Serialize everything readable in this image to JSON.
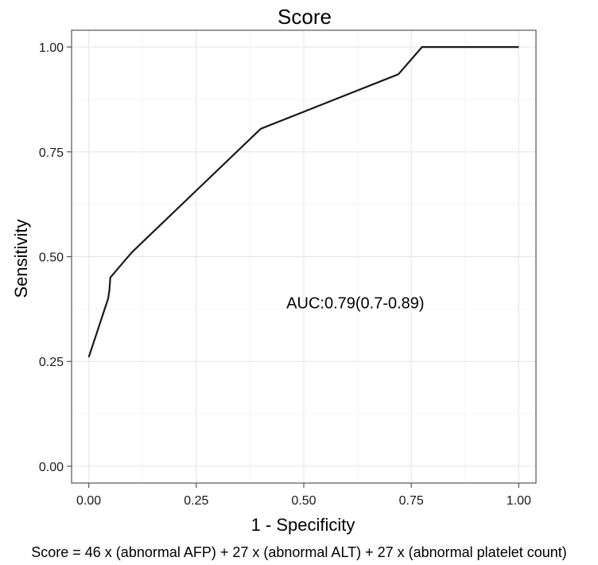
{
  "chart_data": {
    "type": "line",
    "title": "Score",
    "xlabel": "1 - Specificity",
    "ylabel": "Sensitivity",
    "xlim": [
      -0.04,
      1.04
    ],
    "ylim": [
      -0.04,
      1.04
    ],
    "x_ticks": [
      "0.00",
      "0.25",
      "0.50",
      "0.75",
      "1.00"
    ],
    "y_ticks": [
      "0.00",
      "0.25",
      "0.50",
      "0.75",
      "1.00"
    ],
    "x_tick_values": [
      0,
      0.25,
      0.5,
      0.75,
      1
    ],
    "y_tick_values": [
      0,
      0.25,
      0.5,
      0.75,
      1
    ],
    "grid": true,
    "series": [
      {
        "x": [
          0.0,
          0.045,
          0.048,
          0.05,
          0.1,
          0.4,
          0.72,
          0.775,
          1.0
        ],
        "y": [
          0.26,
          0.4,
          0.42,
          0.45,
          0.51,
          0.805,
          0.935,
          1.0,
          1.0
        ],
        "color": "#1a1a1a"
      }
    ],
    "annotations": [
      {
        "text": "AUC:0.79(0.7-0.89)",
        "x": 0.62,
        "y": 0.39
      }
    ]
  },
  "caption": "Score = 46 x (abnormal AFP) + 27 x (abnormal ALT) + 27 x (abnormal platelet count)"
}
